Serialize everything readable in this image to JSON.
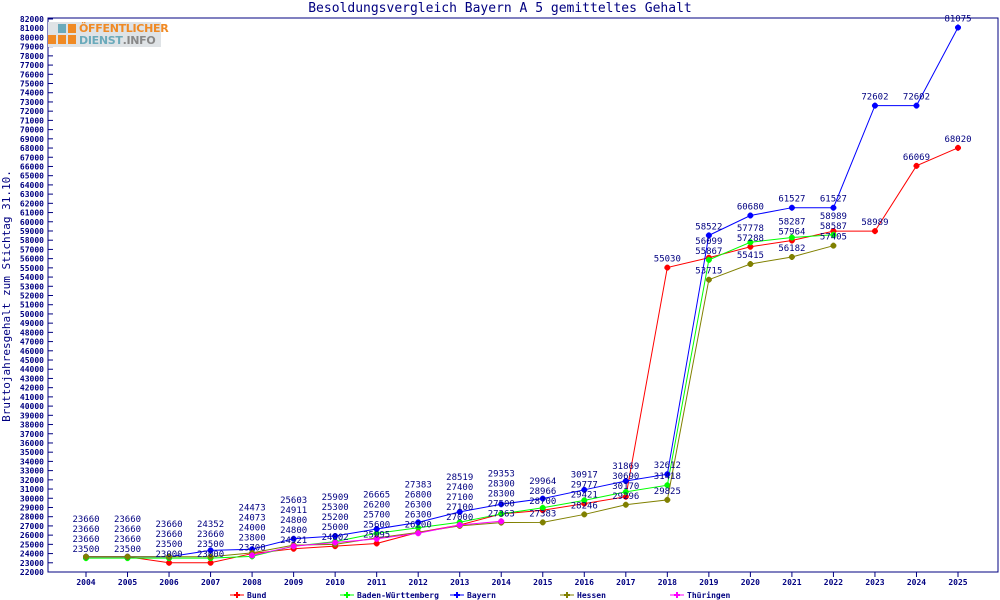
{
  "chart_data": {
    "type": "line",
    "title": "Besoldungsvergleich Bayern A 5 gemitteltes Gehalt",
    "xlabel": "",
    "ylabel": "Bruttojahresgehalt zum Stichtag 31.10.",
    "ylim": [
      22000,
      82000
    ],
    "ytick_step": 1000,
    "x": [
      2004,
      2005,
      2006,
      2007,
      2008,
      2009,
      2010,
      2011,
      2012,
      2013,
      2014,
      2015,
      2016,
      2017,
      2018,
      2019,
      2020,
      2021,
      2022,
      2023,
      2024,
      2025
    ],
    "legend_position": "bottom",
    "grid": false,
    "series": [
      {
        "name": "Bund",
        "color": "#ff0000",
        "values": [
          23660,
          23660,
          23000,
          23000,
          24000,
          24521,
          24802,
          25095,
          26300,
          27100,
          28300,
          28700,
          29421,
          30170,
          55030,
          56099,
          57288,
          57964,
          58989,
          58989,
          66069,
          68020
        ]
      },
      {
        "name": "Baden-Württemberg",
        "color": "#00ff00",
        "values": [
          23500,
          23500,
          23500,
          23500,
          23700,
          24800,
          25300,
          26200,
          26800,
          27400,
          28300,
          28966,
          29777,
          30690,
          31418,
          55867,
          57778,
          58287,
          58587,
          null,
          null,
          null
        ]
      },
      {
        "name": "Bayern",
        "color": "#0000ff",
        "values": [
          23660,
          23660,
          23660,
          24352,
          24473,
          25603,
          25909,
          26665,
          27383,
          28519,
          29353,
          29964,
          30917,
          31869,
          32612,
          58522,
          60680,
          61527,
          61527,
          72602,
          72602,
          81075
        ]
      },
      {
        "name": "Hessen",
        "color": "#808000",
        "values": [
          23660,
          23660,
          23660,
          23660,
          24073,
          24911,
          25000,
          25700,
          26300,
          27000,
          27363,
          27383,
          28246,
          29296,
          29825,
          53715,
          55415,
          56182,
          57405,
          null,
          null,
          null
        ]
      },
      {
        "name": "Thüringen",
        "color": "#ff00ff",
        "values": [
          null,
          null,
          null,
          null,
          23800,
          24800,
          25200,
          25600,
          26200,
          27100,
          27500,
          null,
          null,
          null,
          null,
          null,
          null,
          null,
          null,
          null,
          null,
          null
        ]
      }
    ]
  },
  "logo": {
    "line1": "ÖFFENTLICHER",
    "line2a": "DIENST",
    "line2b": ".INFO"
  },
  "colors": {
    "axis": "#000080",
    "text": "#000080"
  }
}
